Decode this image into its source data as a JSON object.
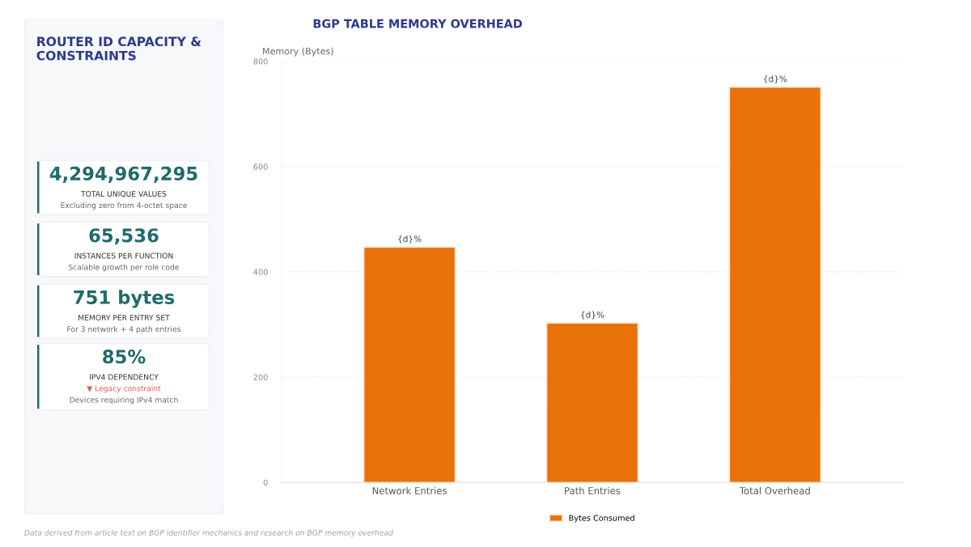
{
  "chart_data": [
    {
      "type": "other",
      "title": "ROUTER ID CAPACITY & CONSTRAINTS",
      "annotations": [
        "4,294,967,295",
        "TOTAL UNIQUE VALUES",
        "Excluding zero from 4-octet space",
        "65,536",
        "INSTANCES PER FUNCTION",
        "Scalable growth per role code",
        "751 bytes",
        "MEMORY PER ENTRY SET",
        "For 3 network + 4 path entries",
        "85%",
        "IPV4 DEPENDENCY",
        "▼ Legacy constraint",
        "Devices requiring IPv4 match",
        "Data derived from article text on BGP identifier mechanics and research on BGP memory overhead"
      ]
    },
    {
      "type": "bar",
      "title": "BGP TABLE MEMORY OVERHEAD",
      "ylabel": "Memory (Bytes)",
      "categories": [
        "Network Entries",
        "Path Entries",
        "Total Overhead"
      ],
      "series": [
        {
          "name": "Bytes Consumed",
          "color": "#e8710a",
          "values": [
            447,
            303,
            751
          ],
          "value_labels": [
            "{d}%",
            "{d}%",
            "{d}%"
          ]
        }
      ],
      "ylim": [
        0,
        800
      ],
      "yticks": [
        0,
        200,
        400,
        600,
        800
      ],
      "grid": "y",
      "legend": "bottom"
    }
  ]
}
